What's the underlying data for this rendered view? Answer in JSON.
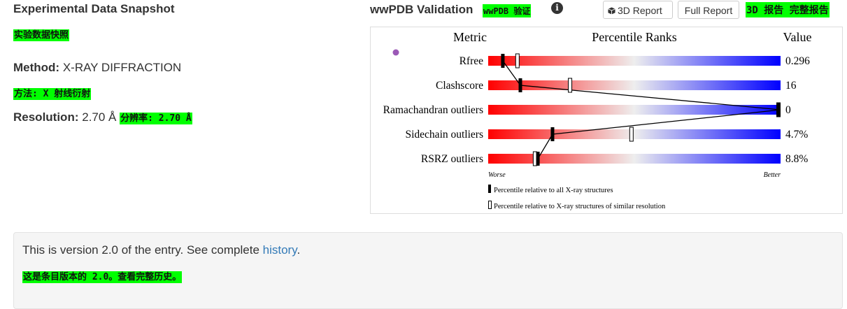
{
  "snapshot": {
    "title": "Experimental Data Snapshot",
    "title_cn": "实验数据快照",
    "method_label": "Method:",
    "method_value": "X-RAY DIFFRACTION",
    "method_cn": "方法: X 射线衍射",
    "resolution_label": "Resolution:",
    "resolution_value": "2.70 Å",
    "resolution_cn": "分辨率: 2.70 Å"
  },
  "validation": {
    "title": "wwPDB Validation",
    "title_cn": "wwPDB 验证",
    "info_icon": "info-circle-icon",
    "btn_3d": "3D Report",
    "btn_3d_icon": "cube-icon",
    "btn_full": "Full Report",
    "buttons_cn": "3D 报告 完整报告"
  },
  "chart_data": {
    "type": "percentile-slider",
    "headers": {
      "metric": "Metric",
      "ranks": "Percentile Ranks",
      "value": "Value"
    },
    "rows": [
      {
        "metric": "Rfree",
        "value": "0.296",
        "all_pct": 5,
        "similar_pct": 10
      },
      {
        "metric": "Clashscore",
        "value": "16",
        "all_pct": 11,
        "similar_pct": 28
      },
      {
        "metric": "Ramachandran outliers",
        "value": "0",
        "all_pct": 100,
        "similar_pct": 100
      },
      {
        "metric": "Sidechain outliers",
        "value": "4.7%",
        "all_pct": 22,
        "similar_pct": 49
      },
      {
        "metric": "RSRZ outliers",
        "value": "8.8%",
        "all_pct": 17,
        "similar_pct": 16
      }
    ],
    "worse_label": "Worse",
    "better_label": "Better",
    "legend_all": "Percentile relative to all X-ray structures",
    "legend_similar": "Percentile relative to X-ray structures of similar resolution",
    "colors": {
      "worse": "#ff0000",
      "mid": "#eeeeee",
      "better": "#0000ff",
      "dot": "#9b59b6"
    }
  },
  "history": {
    "text_before": "This is version 2.0 of the entry. See complete ",
    "link": "history",
    "text_after": ".",
    "cn": "这是条目版本的 2.0。查看完整历史。"
  }
}
